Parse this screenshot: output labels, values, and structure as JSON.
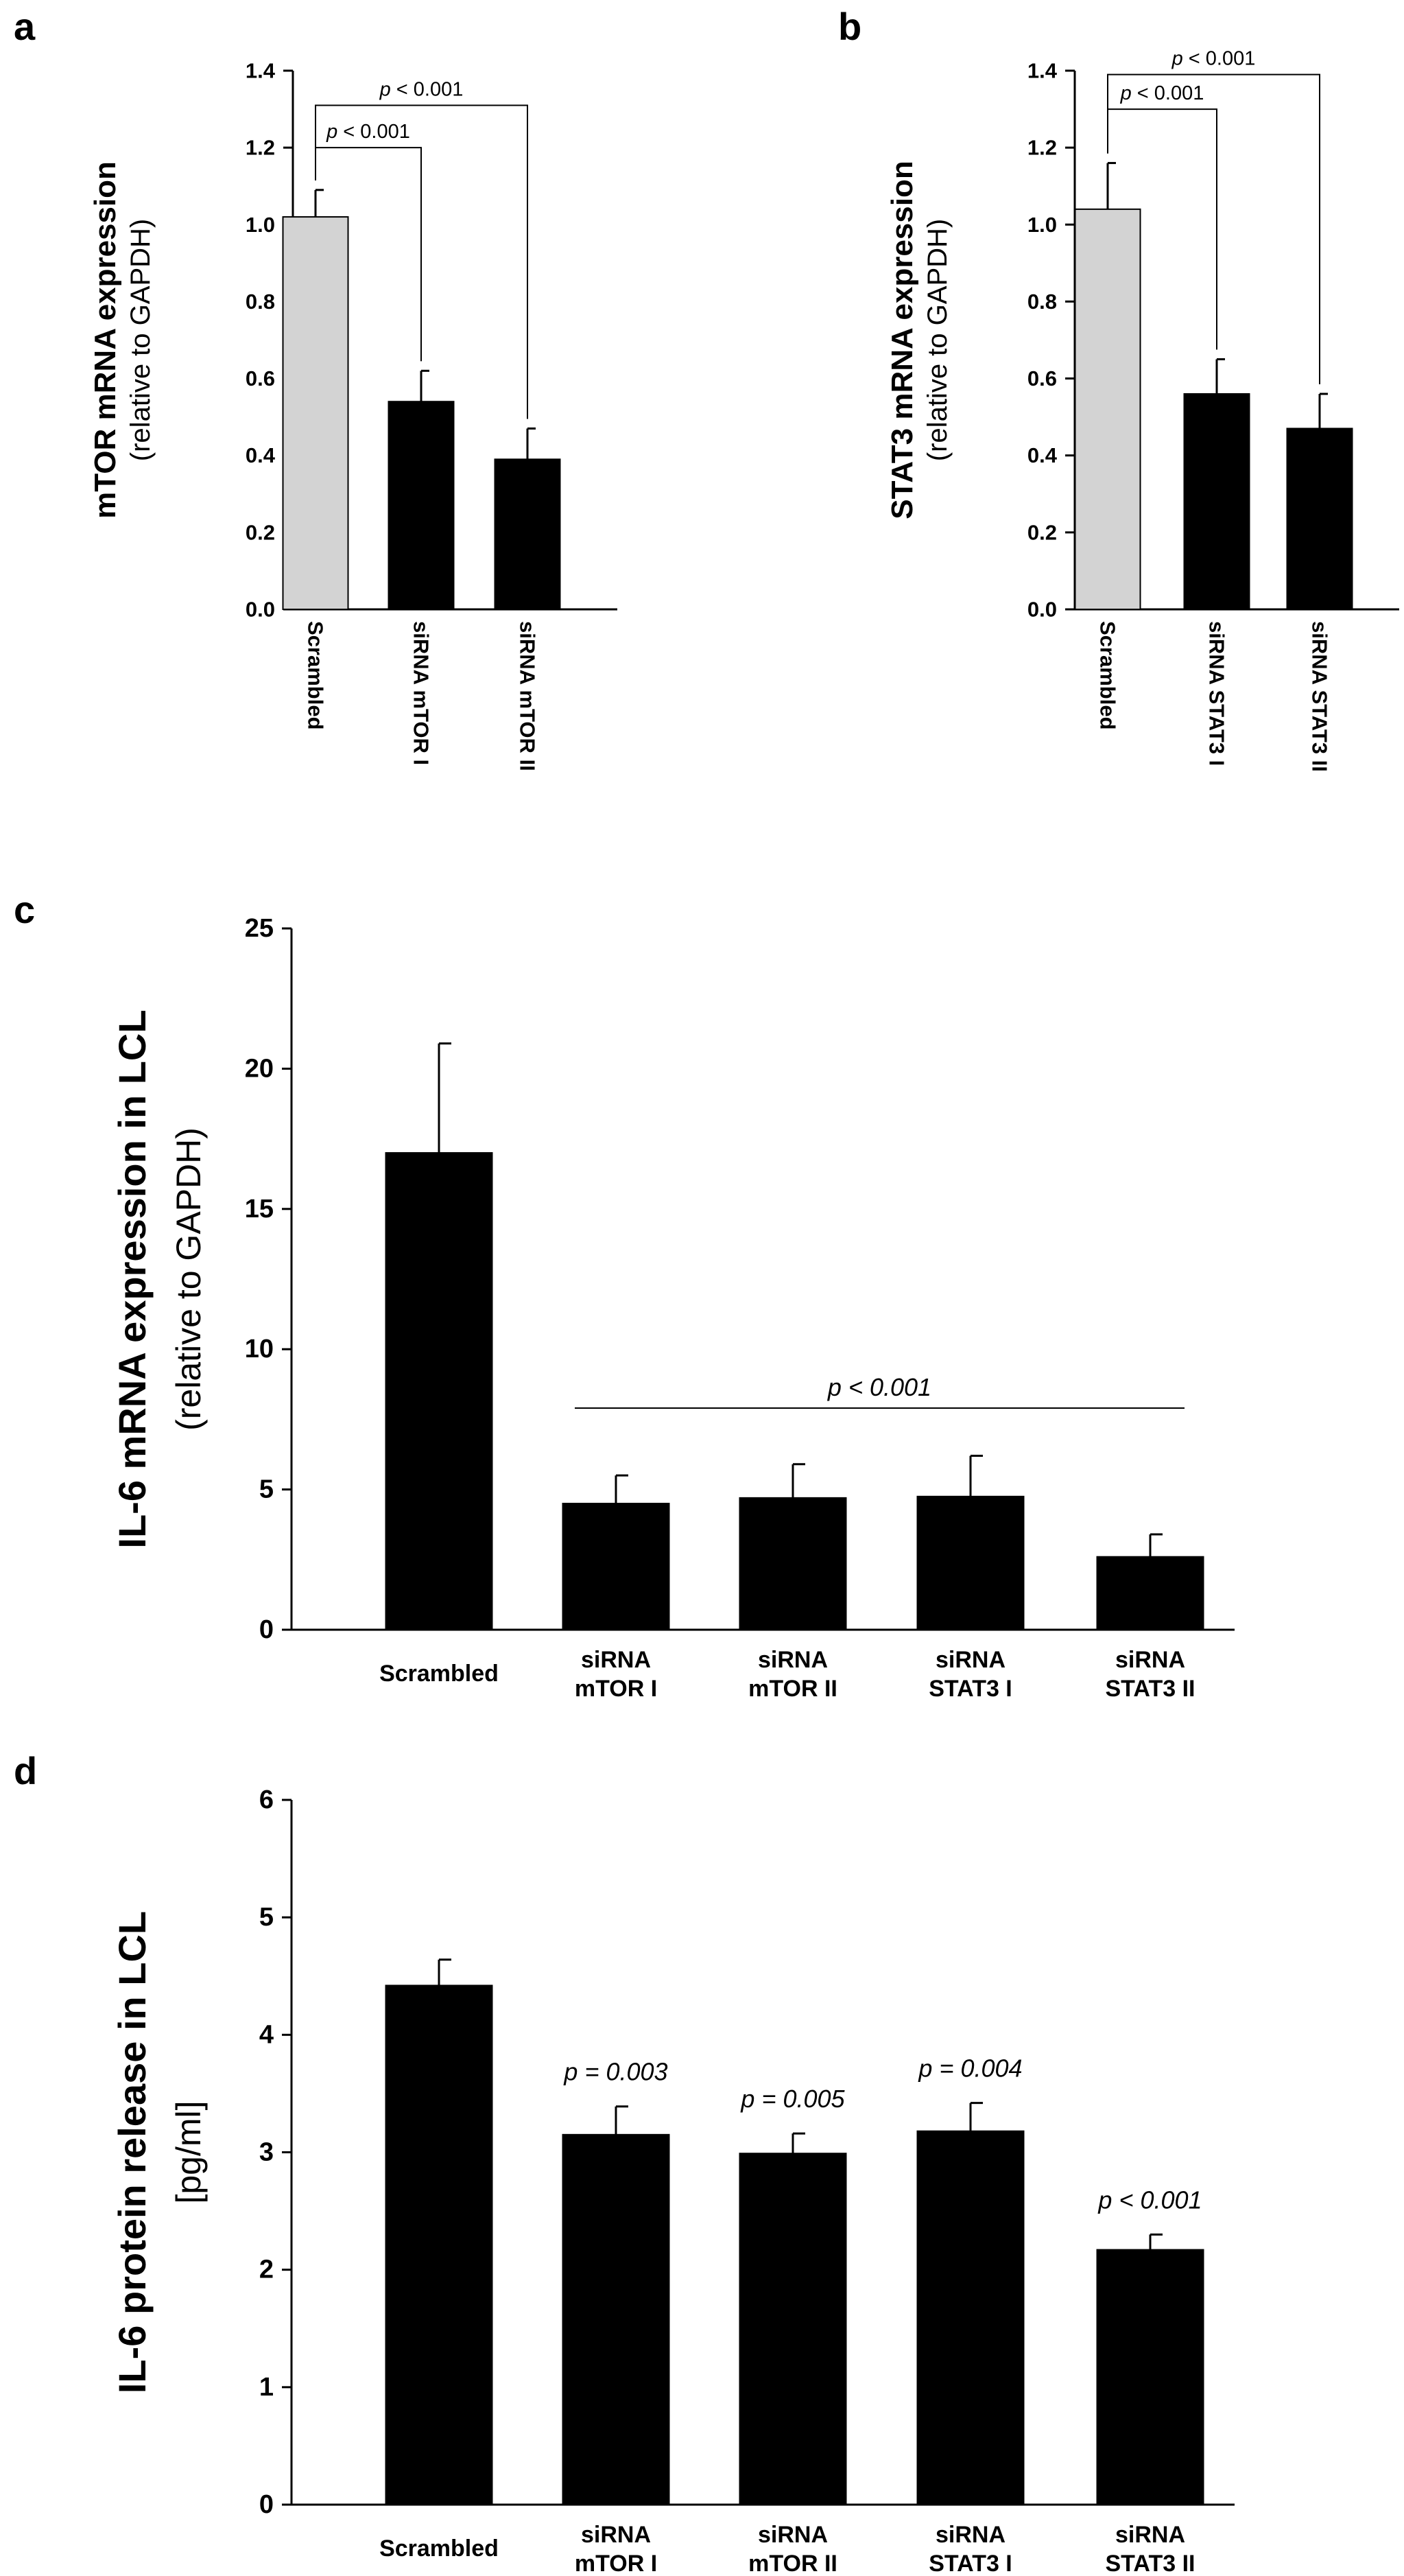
{
  "chart_data": [
    {
      "panel": "a",
      "type": "bar",
      "categories": [
        "Scrambled",
        "siRNA mTOR I",
        "siRNA mTOR II"
      ],
      "values": [
        1.02,
        0.54,
        0.39
      ],
      "errors": [
        0.07,
        0.08,
        0.08
      ],
      "colors": [
        "#d3d3d3",
        "#000000",
        "#000000"
      ],
      "ylabel": "mTOR mRNA expression",
      "ylabel_sub": "(relative to GAPDH)",
      "ylim": [
        0,
        1.4
      ],
      "yticks": [
        0.0,
        0.2,
        0.4,
        0.6,
        0.8,
        1.0,
        1.2,
        1.4
      ],
      "ytick_labels": [
        "0.0",
        "0.2",
        "0.4",
        "0.6",
        "0.8",
        "1.0",
        "1.2",
        "1.4"
      ],
      "brackets": [
        {
          "from": 0,
          "to": 1,
          "level": 1.2,
          "p_italic": "p",
          "p_rest": " < 0.001"
        },
        {
          "from": 0,
          "to": 2,
          "level": 1.31,
          "p_italic": "p",
          "p_rest": " < 0.001"
        }
      ]
    },
    {
      "panel": "b",
      "type": "bar",
      "categories": [
        "Scrambled",
        "siRNA STAT3 I",
        "siRNA STAT3 II"
      ],
      "values": [
        1.04,
        0.56,
        0.47
      ],
      "errors": [
        0.12,
        0.09,
        0.09
      ],
      "colors": [
        "#d3d3d3",
        "#000000",
        "#000000"
      ],
      "ylabel": "STAT3 mRNA expression",
      "ylabel_sub": "(relative to GAPDH)",
      "ylim": [
        0,
        1.4
      ],
      "yticks": [
        0.0,
        0.2,
        0.4,
        0.6,
        0.8,
        1.0,
        1.2,
        1.4
      ],
      "ytick_labels": [
        "0.0",
        "0.2",
        "0.4",
        "0.6",
        "0.8",
        "1.0",
        "1.2",
        "1.4"
      ],
      "brackets": [
        {
          "from": 0,
          "to": 1,
          "level": 1.3,
          "p_italic": "p",
          "p_rest": " < 0.001"
        },
        {
          "from": 0,
          "to": 2,
          "level": 1.39,
          "p_italic": "p",
          "p_rest": " < 0.001"
        }
      ]
    },
    {
      "panel": "c",
      "type": "bar",
      "categories": [
        [
          "Scrambled"
        ],
        [
          "siRNA",
          "mTOR I"
        ],
        [
          "siRNA",
          "mTOR II"
        ],
        [
          "siRNA",
          "STAT3 I"
        ],
        [
          "siRNA",
          "STAT3 II"
        ]
      ],
      "values": [
        17.0,
        4.5,
        4.7,
        4.75,
        2.6
      ],
      "errors": [
        3.9,
        1.0,
        1.2,
        1.45,
        0.8
      ],
      "colors": [
        "#000000",
        "#000000",
        "#000000",
        "#000000",
        "#000000"
      ],
      "ylabel": "IL-6 mRNA expression in LCL",
      "ylabel_sub": "(relative to GAPDH)",
      "ylim": [
        0,
        25
      ],
      "yticks": [
        0,
        5,
        10,
        15,
        20,
        25
      ],
      "ytick_labels": [
        "0",
        "5",
        "10",
        "15",
        "20",
        "25"
      ],
      "span_line": {
        "from": 1,
        "to": 4,
        "level": 7.9,
        "label": "p < 0.001"
      }
    },
    {
      "panel": "d",
      "type": "bar",
      "categories": [
        [
          "Scrambled"
        ],
        [
          "siRNA",
          "mTOR I"
        ],
        [
          "siRNA",
          "mTOR II"
        ],
        [
          "siRNA",
          "STAT3 I"
        ],
        [
          "siRNA",
          "STAT3 II"
        ]
      ],
      "values": [
        4.42,
        3.15,
        2.99,
        3.18,
        2.17
      ],
      "errors": [
        0.22,
        0.24,
        0.17,
        0.24,
        0.13
      ],
      "colors": [
        "#000000",
        "#000000",
        "#000000",
        "#000000",
        "#000000"
      ],
      "ylabel": "IL-6 protein release in LCL",
      "ylabel_sub": "[pg/ml]",
      "ylim": [
        0,
        6
      ],
      "yticks": [
        0,
        1,
        2,
        3,
        4,
        5,
        6
      ],
      "ytick_labels": [
        "0",
        "1",
        "2",
        "3",
        "4",
        "5",
        "6"
      ],
      "bar_labels": [
        "",
        "p = 0.003",
        "p = 0.005",
        "p = 0.004",
        "p < 0.001"
      ]
    }
  ]
}
